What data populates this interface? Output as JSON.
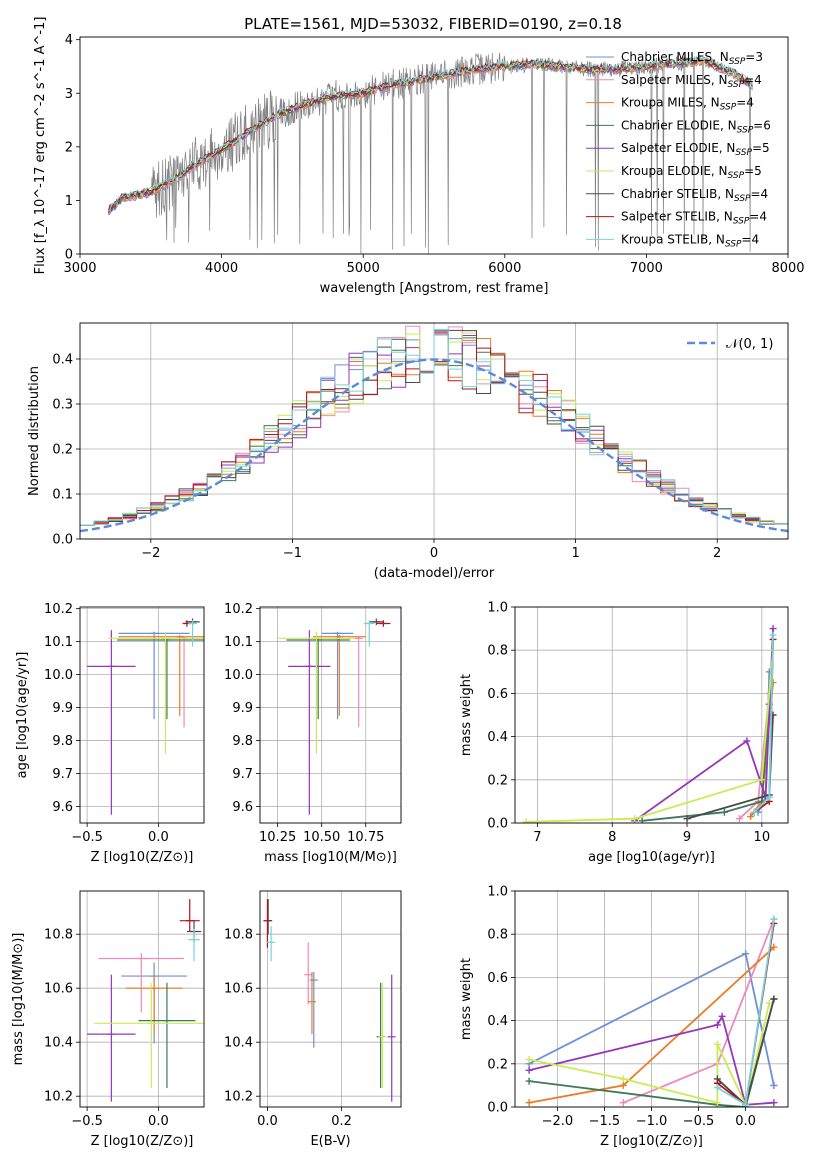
{
  "figure": {
    "title": "PLATE=1561, MJD=53032, FIBERID=0190, z=0.18"
  },
  "colors": {
    "Chabrier MILES": "#6f8fd8",
    "Salpeter MILES": "#ee8ab8",
    "Kroupa MILES": "#ec7a26",
    "Chabrier ELODIE": "#3e7a57",
    "Salpeter ELODIE": "#9636b8",
    "Kroupa ELODIE": "#c8ec54",
    "Chabrier STELIB": "#4a4a4a",
    "Salpeter STELIB": "#b01616",
    "Kroupa STELIB": "#76d2dc",
    "data": "#808080",
    "grid": "#b0b0b0",
    "gaussian": "#5b8ad8"
  },
  "chart_data": [
    {
      "id": "spectrum",
      "type": "line",
      "title": "PLATE=1561, MJD=53032, FIBERID=0190, z=0.18",
      "xlabel": "wavelength [Angstrom, rest frame]",
      "ylabel": "Flux [f_λ 10^-17 erg cm^-2 s^-1 A^-1]",
      "xlim": [
        3000,
        8000
      ],
      "ylim": [
        0,
        4.05
      ],
      "xticks": [
        "3000",
        "4000",
        "5000",
        "6000",
        "7000",
        "8000"
      ],
      "yticks": [
        "0",
        "1",
        "2",
        "3",
        "4"
      ],
      "legend_position": "top-right",
      "legend": [
        {
          "model": "Chabrier MILES",
          "nssp": "3"
        },
        {
          "model": "Salpeter MILES",
          "nssp": "4"
        },
        {
          "model": "Kroupa MILES",
          "nssp": "4"
        },
        {
          "model": "Chabrier ELODIE",
          "nssp": "6"
        },
        {
          "model": "Salpeter ELODIE",
          "nssp": "5"
        },
        {
          "model": "Kroupa ELODIE",
          "nssp": "5"
        },
        {
          "model": "Chabrier STELIB",
          "nssp": "4"
        },
        {
          "model": "Salpeter STELIB",
          "nssp": "4"
        },
        {
          "model": "Kroupa STELIB",
          "nssp": "4"
        }
      ],
      "continuum": {
        "x": [
          3200,
          3300,
          3400,
          3500,
          3600,
          3700,
          3800,
          3900,
          4000,
          4100,
          4200,
          4300,
          4400,
          4600,
          4800,
          5000,
          5200,
          5400,
          5600,
          5800,
          6000,
          6200,
          6400,
          6600,
          6800,
          7000,
          7200,
          7400,
          7600,
          7750
        ],
        "y": [
          0.8,
          1.05,
          1.1,
          1.15,
          1.3,
          1.45,
          1.65,
          1.8,
          1.95,
          2.1,
          2.3,
          2.45,
          2.6,
          2.8,
          2.95,
          3.0,
          3.15,
          3.25,
          3.35,
          3.45,
          3.5,
          3.55,
          3.5,
          3.45,
          3.45,
          3.5,
          3.55,
          3.6,
          3.4,
          3.15
        ]
      }
    },
    {
      "id": "residuals",
      "type": "step",
      "xlabel": "(data-model)/error",
      "ylabel": "Normed distribution",
      "xlim": [
        -2.5,
        2.5
      ],
      "ylim": [
        0,
        0.48
      ],
      "xticks": [
        "−2",
        "−1",
        "0",
        "1",
        "2"
      ],
      "yticks": [
        "0.0",
        "0.1",
        "0.2",
        "0.3",
        "0.4"
      ],
      "legend": "𝒩(0, 1)",
      "bin_width": 0.1,
      "gaussian": {
        "mu": 0,
        "sigma": 1
      }
    },
    {
      "id": "age_vs_Z",
      "type": "errorbar",
      "xlabel": "Z [log10(Z/Z⊙)]",
      "ylabel": "age [log10(age/yr)]",
      "xlim": [
        -0.55,
        0.32
      ],
      "ylim": [
        9.55,
        10.205
      ],
      "xticks": [
        "−0.5",
        "0.0"
      ],
      "yticks": [
        "9.6",
        "9.7",
        "9.8",
        "9.9",
        "10.0",
        "10.1",
        "10.2"
      ],
      "points": [
        {
          "model": "Chabrier MILES",
          "x": -0.03,
          "xerr": 0.25,
          "y": 10.125,
          "yerr": [
            0.26,
            0.005
          ]
        },
        {
          "model": "Salpeter MILES",
          "x": 0.18,
          "xerr": 0.02,
          "y": 10.11,
          "yerr": [
            0.27,
            0.005
          ]
        },
        {
          "model": "Kroupa MILES",
          "x": 0.15,
          "xerr": 0.43,
          "y": 10.115,
          "yerr": [
            0.24,
            0.005
          ]
        },
        {
          "model": "Chabrier ELODIE",
          "x": 0.06,
          "xerr": 0.35,
          "y": 10.105,
          "yerr": [
            0.24,
            0.005
          ]
        },
        {
          "model": "Salpeter ELODIE",
          "x": -0.33,
          "xerr": 0.17,
          "y": 10.025,
          "yerr": [
            0.45,
            0.11
          ]
        },
        {
          "model": "Kroupa ELODIE",
          "x": 0.05,
          "xerr": 0.4,
          "y": 10.11,
          "yerr": [
            0.35,
            0.02
          ]
        },
        {
          "model": "Chabrier STELIB",
          "x": 0.24,
          "xerr": 0.05,
          "y": 10.16,
          "yerr": [
            0.01,
            0.01
          ]
        },
        {
          "model": "Salpeter STELIB",
          "x": 0.2,
          "xerr": 0.03,
          "y": 10.155,
          "yerr": [
            0.01,
            0.01
          ]
        },
        {
          "model": "Kroupa STELIB",
          "x": 0.24,
          "xerr": 0.03,
          "y": 10.155,
          "yerr": [
            0.07,
            0.01
          ]
        }
      ]
    },
    {
      "id": "age_vs_mass",
      "type": "errorbar",
      "xlabel": "mass [log10(M/M⊙)]",
      "ylabel": "",
      "xlim": [
        10.15,
        10.95
      ],
      "ylim": [
        9.55,
        10.205
      ],
      "xticks": [
        "10.25",
        "10.50",
        "10.75"
      ],
      "yticks": [
        "9.6",
        "9.7",
        "9.8",
        "9.9",
        "10.0",
        "10.1",
        "10.2"
      ],
      "points": [
        {
          "model": "Chabrier MILES",
          "x": 10.59,
          "xerr": 0.09,
          "y": 10.125,
          "yerr": [
            0.26,
            0.005
          ]
        },
        {
          "model": "Salpeter MILES",
          "x": 10.71,
          "xerr": 0.005,
          "y": 10.11,
          "yerr": [
            0.27,
            0.005
          ]
        },
        {
          "model": "Kroupa MILES",
          "x": 10.6,
          "xerr": 0.15,
          "y": 10.115,
          "yerr": [
            0.24,
            0.005
          ]
        },
        {
          "model": "Chabrier ELODIE",
          "x": 10.48,
          "xerr": 0.18,
          "y": 10.105,
          "yerr": [
            0.24,
            0.005
          ]
        },
        {
          "model": "Salpeter ELODIE",
          "x": 10.43,
          "xerr": 0.12,
          "y": 10.025,
          "yerr": [
            0.45,
            0.11
          ]
        },
        {
          "model": "Kroupa ELODIE",
          "x": 10.47,
          "xerr": 0.22,
          "y": 10.11,
          "yerr": [
            0.35,
            0.02
          ]
        },
        {
          "model": "Chabrier STELIB",
          "x": 10.81,
          "xerr": 0.04,
          "y": 10.16,
          "yerr": [
            0.01,
            0.01
          ]
        },
        {
          "model": "Salpeter STELIB",
          "x": 10.85,
          "xerr": 0.04,
          "y": 10.155,
          "yerr": [
            0.01,
            0.01
          ]
        },
        {
          "model": "Kroupa STELIB",
          "x": 10.77,
          "xerr": 0.03,
          "y": 10.155,
          "yerr": [
            0.07,
            0.01
          ]
        }
      ]
    },
    {
      "id": "weights_vs_age",
      "type": "line",
      "xlabel": "age [log10(age/yr)]",
      "ylabel": "mass weight",
      "xlim": [
        6.7,
        10.35
      ],
      "ylim": [
        0,
        1.0
      ],
      "xticks": [
        "7",
        "8",
        "9",
        "10"
      ],
      "yticks": [
        "0.0",
        "0.2",
        "0.4",
        "0.6",
        "0.8",
        "1.0"
      ],
      "series": [
        {
          "model": "Chabrier MILES",
          "x": [
            9.95,
            10.05,
            10.1
          ],
          "y": [
            0.05,
            0.12,
            0.7
          ]
        },
        {
          "model": "Salpeter MILES",
          "x": [
            9.7,
            9.95,
            10.1
          ],
          "y": [
            0.02,
            0.1,
            0.6
          ]
        },
        {
          "model": "Kroupa MILES",
          "x": [
            9.85,
            10.0,
            10.15
          ],
          "y": [
            0.03,
            0.1,
            0.65
          ]
        },
        {
          "model": "Chabrier ELODIE",
          "x": [
            8.4,
            9.5,
            10.0,
            10.1
          ],
          "y": [
            0.01,
            0.05,
            0.1,
            0.55
          ]
        },
        {
          "model": "Salpeter ELODIE",
          "x": [
            8.3,
            9.8,
            10.05,
            10.15
          ],
          "y": [
            0.01,
            0.38,
            0.12,
            0.9
          ]
        },
        {
          "model": "Kroupa ELODIE",
          "x": [
            6.85,
            8.3,
            10.0,
            10.15
          ],
          "y": [
            0.005,
            0.02,
            0.2,
            0.8
          ]
        },
        {
          "model": "Chabrier STELIB",
          "x": [
            9.0,
            10.1,
            10.15
          ],
          "y": [
            0.02,
            0.13,
            0.5
          ]
        },
        {
          "model": "Salpeter STELIB",
          "x": [
            9.9,
            10.1,
            10.15
          ],
          "y": [
            0.05,
            0.1,
            0.85
          ]
        },
        {
          "model": "Kroupa STELIB",
          "x": [
            9.9,
            10.1,
            10.15
          ],
          "y": [
            0.05,
            0.12,
            0.87
          ]
        }
      ]
    },
    {
      "id": "mass_vs_Z",
      "type": "errorbar",
      "xlabel": "Z [log10(Z/Z⊙)]",
      "ylabel": "mass [log10(M/M⊙)]",
      "xlim": [
        -0.55,
        0.32
      ],
      "ylim": [
        10.16,
        10.96
      ],
      "xticks": [
        "−0.5",
        "0.0"
      ],
      "yticks": [
        "10.2",
        "10.4",
        "10.6",
        "10.8"
      ],
      "points": [
        {
          "model": "Chabrier MILES",
          "x": -0.03,
          "xerr": 0.23,
          "y": 10.645,
          "yerr": [
            0.25,
            0.05
          ]
        },
        {
          "model": "Salpeter MILES",
          "x": -0.12,
          "xerr": 0.3,
          "y": 10.71,
          "yerr": [
            0.2,
            0.02
          ]
        },
        {
          "model": "Kroupa MILES",
          "x": -0.03,
          "xerr": 0.2,
          "y": 10.6,
          "yerr": [
            0.17,
            0.05
          ]
        },
        {
          "model": "Chabrier ELODIE",
          "x": 0.06,
          "xerr": 0.2,
          "y": 10.48,
          "yerr": [
            0.25,
            0.14
          ]
        },
        {
          "model": "Salpeter ELODIE",
          "x": -0.33,
          "xerr": 0.17,
          "y": 10.43,
          "yerr": [
            0.25,
            0.22
          ]
        },
        {
          "model": "Kroupa ELODIE",
          "x": -0.05,
          "xerr": 0.4,
          "y": 10.47,
          "yerr": [
            0.24,
            0.15
          ]
        },
        {
          "model": "Chabrier STELIB",
          "x": 0.25,
          "xerr": 0.05,
          "y": 10.81,
          "yerr": [
            0.04,
            0.04
          ]
        },
        {
          "model": "Salpeter STELIB",
          "x": 0.22,
          "xerr": 0.07,
          "y": 10.85,
          "yerr": [
            0.04,
            0.08
          ]
        },
        {
          "model": "Kroupa STELIB",
          "x": 0.25,
          "xerr": 0.04,
          "y": 10.78,
          "yerr": [
            0.08,
            0.04
          ]
        }
      ]
    },
    {
      "id": "mass_vs_ebv",
      "type": "errorbar",
      "xlabel": "E(B-V)",
      "ylabel": "",
      "xlim": [
        -0.02,
        0.36
      ],
      "ylim": [
        10.16,
        10.96
      ],
      "xticks": [
        "0.0",
        "0.2"
      ],
      "yticks": [
        "10.2",
        "10.4",
        "10.6",
        "10.8"
      ],
      "points": [
        {
          "model": "Chabrier MILES",
          "x": 0.125,
          "xerr": 0,
          "y": 10.63,
          "yerr": [
            0.25,
            0.03
          ]
        },
        {
          "model": "Salpeter MILES",
          "x": 0.11,
          "xerr": 0,
          "y": 10.65,
          "yerr": [
            0.11,
            0.12
          ]
        },
        {
          "model": "Kroupa MILES",
          "x": 0.12,
          "xerr": 0,
          "y": 10.55,
          "yerr": [
            0.12,
            0.11
          ]
        },
        {
          "model": "Chabrier ELODIE",
          "x": 0.305,
          "xerr": 0,
          "y": 10.42,
          "yerr": [
            0.19,
            0.2
          ]
        },
        {
          "model": "Salpeter ELODIE",
          "x": 0.335,
          "xerr": 0,
          "y": 10.42,
          "yerr": [
            0.24,
            0.23
          ]
        },
        {
          "model": "Kroupa ELODIE",
          "x": 0.31,
          "xerr": 0,
          "y": 10.42,
          "yerr": [
            0.19,
            0.2
          ]
        },
        {
          "model": "Chabrier STELIB",
          "x": 0.002,
          "xerr": 0,
          "y": 10.85,
          "yerr": [
            0.05,
            0.08
          ]
        },
        {
          "model": "Salpeter STELIB",
          "x": 0.0,
          "xerr": 0,
          "y": 10.85,
          "yerr": [
            0.1,
            0.08
          ]
        },
        {
          "model": "Kroupa STELIB",
          "x": 0.01,
          "xerr": 0,
          "y": 10.77,
          "yerr": [
            0.07,
            0.06
          ]
        }
      ]
    },
    {
      "id": "weights_vs_Z",
      "type": "line",
      "xlabel": "Z [log10(Z/Z⊙)]",
      "ylabel": "mass weight",
      "xlim": [
        -2.45,
        0.45
      ],
      "ylim": [
        0,
        1.0
      ],
      "xticks": [
        "−2.0",
        "−1.5",
        "−1.0",
        "−0.5",
        "0.0"
      ],
      "yticks": [
        "0.0",
        "0.2",
        "0.4",
        "0.6",
        "0.8",
        "1.0"
      ],
      "series": [
        {
          "model": "Chabrier MILES",
          "x": [
            -2.3,
            0.0,
            0.3,
            0.3
          ],
          "y": [
            0.2,
            0.71,
            0.1,
            0.1
          ]
        },
        {
          "model": "Salpeter MILES",
          "x": [
            -1.3,
            -0.3,
            0.3
          ],
          "y": [
            0.02,
            0.2,
            0.87
          ]
        },
        {
          "model": "Kroupa MILES",
          "x": [
            -2.3,
            -1.3,
            0.3
          ],
          "y": [
            0.02,
            0.1,
            0.74
          ]
        },
        {
          "model": "Chabrier ELODIE",
          "x": [
            -2.3,
            -0.3,
            0.0,
            0.3
          ],
          "y": [
            0.12,
            0.01,
            0.0,
            0.5
          ]
        },
        {
          "model": "Salpeter ELODIE",
          "x": [
            -2.3,
            -0.3,
            -0.25,
            0.0,
            0.3
          ],
          "y": [
            0.17,
            0.38,
            0.42,
            0.01,
            0.02
          ]
        },
        {
          "model": "Kroupa ELODIE",
          "x": [
            -2.3,
            -1.3,
            -0.3,
            -0.3,
            0.0,
            0.25
          ],
          "y": [
            0.22,
            0.13,
            0.02,
            0.29,
            0.01,
            0.48
          ]
        },
        {
          "model": "Chabrier STELIB",
          "x": [
            -0.3,
            0.0,
            0.3
          ],
          "y": [
            0.13,
            0.01,
            0.5
          ]
        },
        {
          "model": "Salpeter STELIB",
          "x": [
            -0.3,
            0.0,
            0.3
          ],
          "y": [
            0.11,
            0.01,
            0.85
          ]
        },
        {
          "model": "Kroupa STELIB",
          "x": [
            -0.3,
            0.0,
            0.3
          ],
          "y": [
            0.09,
            0.01,
            0.87
          ]
        }
      ]
    }
  ]
}
